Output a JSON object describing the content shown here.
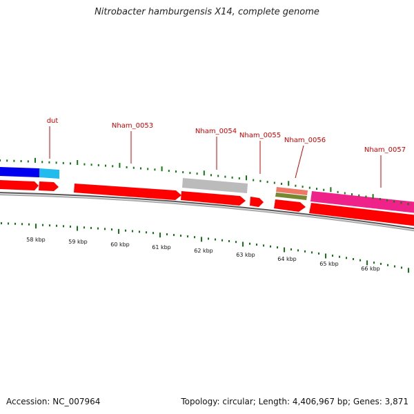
{
  "title": "Nitrobacter hamburgensis X14, complete genome",
  "footer": {
    "accession": "Accession: NC_007964",
    "stats": "Topology: circular; Length: 4,406,967 bp; Genes: 3,871"
  },
  "colors": {
    "cds_red": "#ff0000",
    "cds_pink": "#ee2288",
    "cds_blue": "#0000ee",
    "cds_lightblue": "#22bbee",
    "pseudo_gray": "#bbbbbb",
    "misc_salmon": "#ee7766",
    "misc_olive": "#778833",
    "tick_green": "#117711",
    "label_red": "#cc0000",
    "backbone_gray": "#777777"
  },
  "gene_labels": [
    "dut",
    "Nham_0053",
    "Nham_0054",
    "Nham_0055",
    "Nham_0056",
    "Nham_0057"
  ],
  "kbp_labels": [
    "58 kbp",
    "59 kbp",
    "60 kbp",
    "61 kbp",
    "62 kbp",
    "63 kbp",
    "64 kbp",
    "65 kbp",
    "66 kbp"
  ]
}
